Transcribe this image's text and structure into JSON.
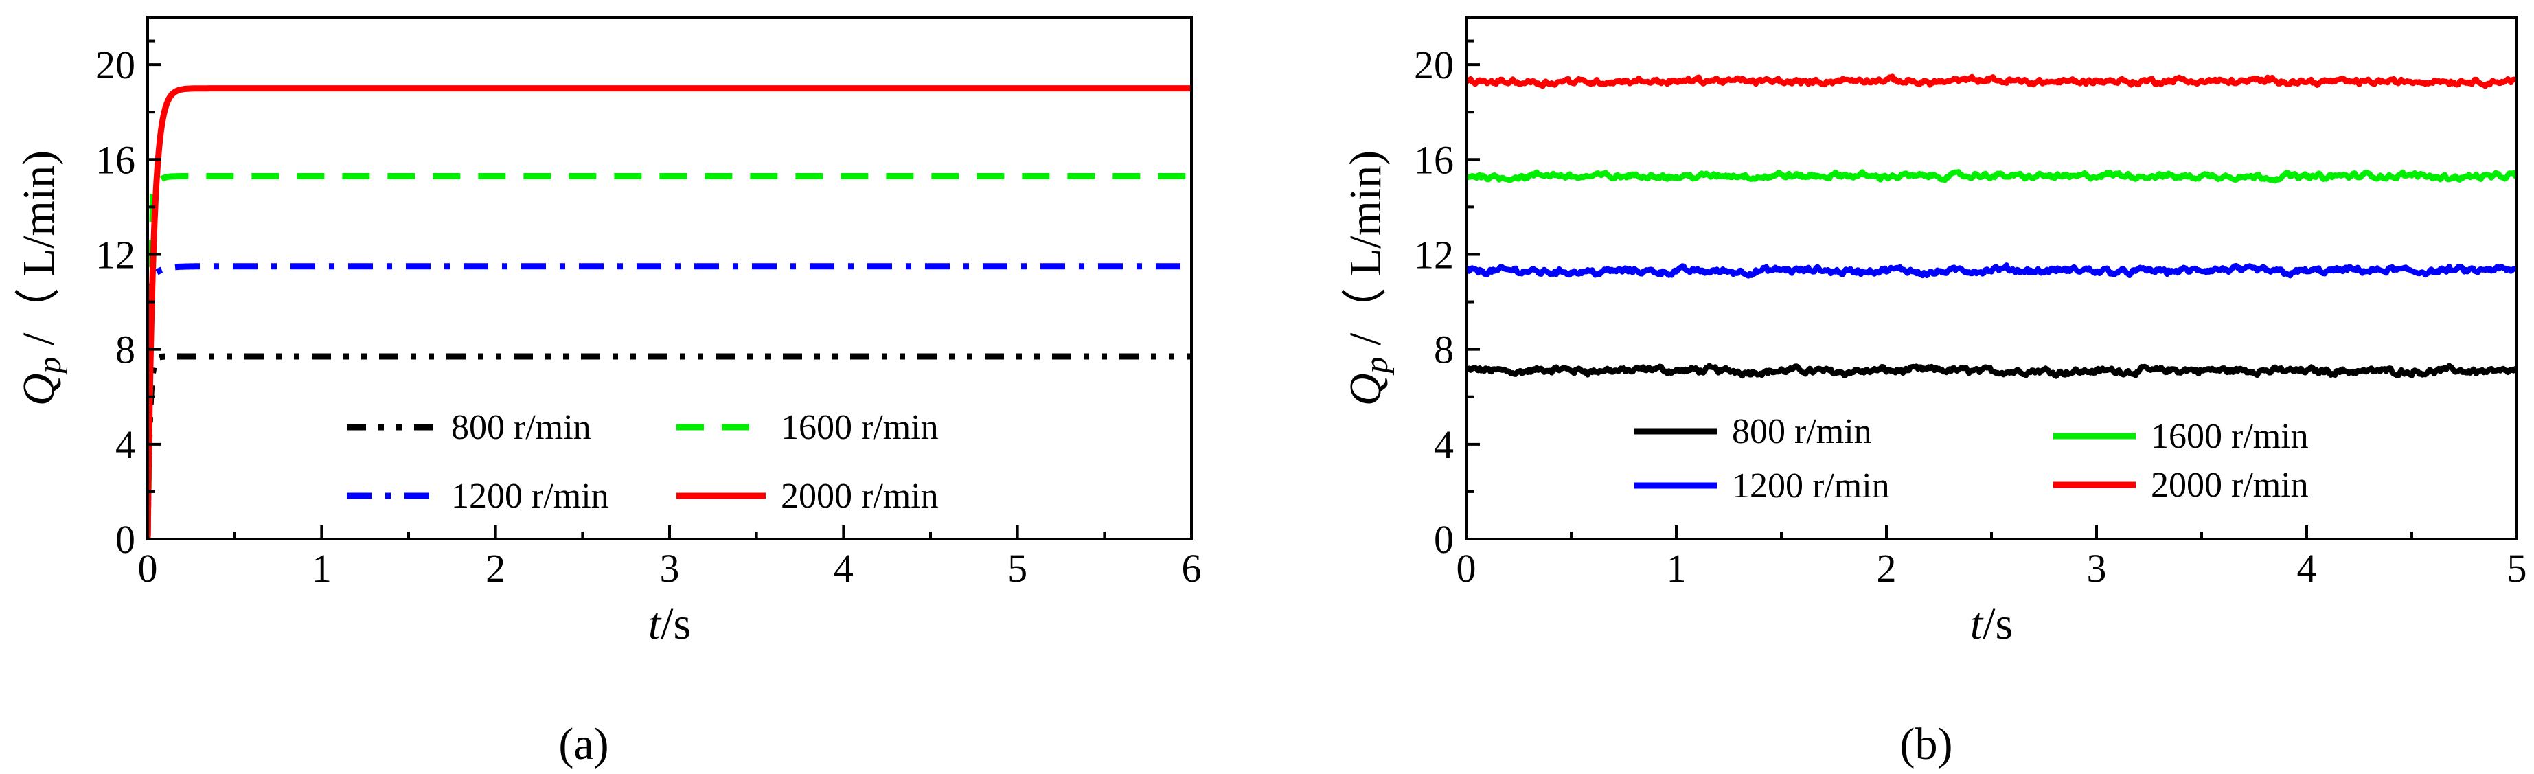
{
  "chart_data": [
    {
      "panel": "a",
      "caption": "(a)",
      "type": "line",
      "xlabel": {
        "italic": "t",
        "rest": "/s"
      },
      "ylabel": {
        "italic": "Q",
        "sub": "p",
        "rest": " /（ L/min)"
      },
      "xlim": [
        0,
        6
      ],
      "ylim": [
        0,
        22
      ],
      "xticks": [
        0,
        1,
        2,
        3,
        4,
        5,
        6
      ],
      "yticks": [
        0,
        4,
        8,
        12,
        16,
        20
      ],
      "grid": false,
      "legend_position": "lower-center",
      "series": [
        {
          "name": "800 r/min",
          "color": "#000000",
          "dash": "dashdotdot",
          "steady": 7.7,
          "start": 0,
          "rise_time": 0.05
        },
        {
          "name": "1200 r/min",
          "color": "#0000ff",
          "dash": "dashdot",
          "steady": 11.5,
          "start": 0,
          "jump": 11.0,
          "jump_time": 0.02,
          "rise_time": 0.15
        },
        {
          "name": "1600 r/min",
          "color": "#00ee00",
          "dash": "dash",
          "steady": 15.3,
          "start": 0,
          "jump": 14.5,
          "jump_time": 0.03,
          "rise_time": 0.08
        },
        {
          "name": "2000 r/min",
          "color": "#ff0000",
          "dash": "solid",
          "steady": 19.0,
          "start": 0,
          "rise_time": 0.13
        }
      ]
    },
    {
      "panel": "b",
      "caption": "(b)",
      "type": "line",
      "xlabel": {
        "italic": "t",
        "rest": "/s"
      },
      "ylabel": {
        "italic": "Q",
        "sub": "p",
        "rest": " /（ L/min)"
      },
      "xlim": [
        0,
        5
      ],
      "ylim": [
        0,
        22
      ],
      "xticks": [
        0,
        1,
        2,
        3,
        4,
        5
      ],
      "yticks": [
        0,
        4,
        8,
        12,
        16,
        20
      ],
      "grid": false,
      "legend_position": "lower-center",
      "series": [
        {
          "name": "800 r/min",
          "color": "#000000",
          "dash": "solid",
          "mean": 7.1,
          "noise": 0.18
        },
        {
          "name": "1200 r/min",
          "color": "#0000ff",
          "dash": "solid",
          "mean": 11.3,
          "noise": 0.18
        },
        {
          "name": "1600 r/min",
          "color": "#00ee00",
          "dash": "solid",
          "mean": 15.3,
          "noise": 0.16
        },
        {
          "name": "2000 r/min",
          "color": "#ff0000",
          "dash": "solid",
          "mean": 19.3,
          "noise": 0.16
        }
      ]
    }
  ]
}
